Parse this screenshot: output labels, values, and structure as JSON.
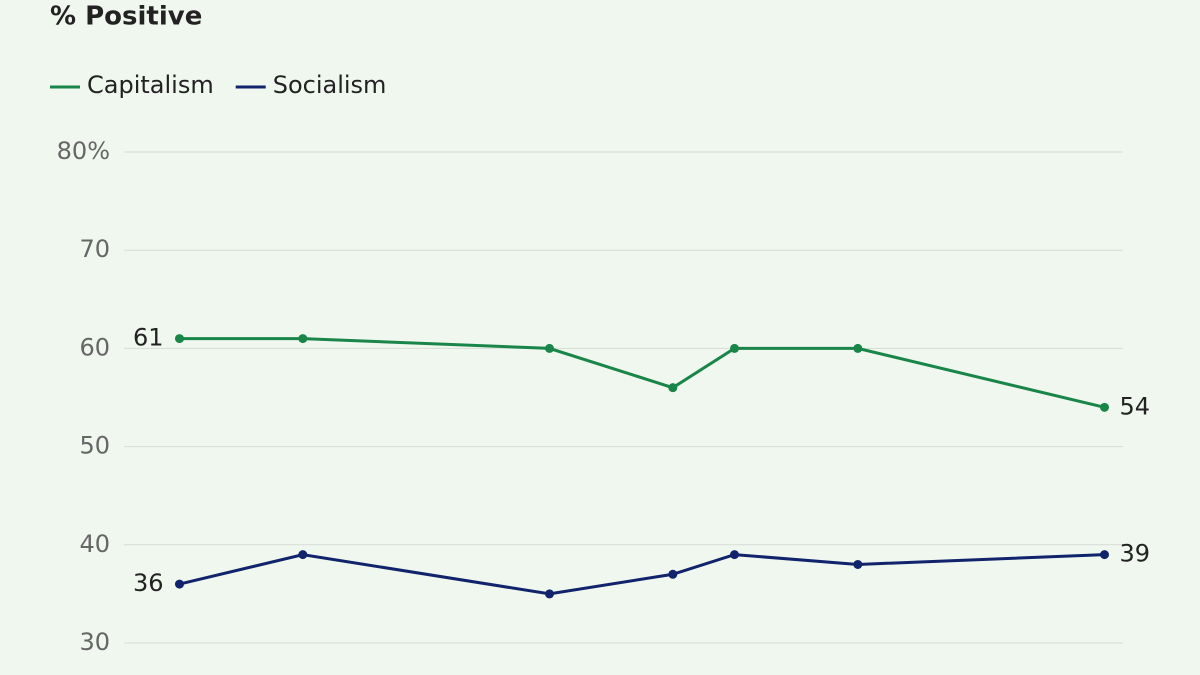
{
  "chart_data": {
    "type": "line",
    "title": "% Positive",
    "x": [
      0,
      2,
      6,
      8,
      9,
      11,
      15
    ],
    "xlim": [
      -0.9,
      15.3
    ],
    "series": [
      {
        "name": "Capitalism",
        "color": "#1a8548",
        "values": [
          61,
          61,
          60,
          56,
          60,
          60,
          54
        ]
      },
      {
        "name": "Socialism",
        "color": "#10236b",
        "values": [
          36,
          39,
          35,
          37,
          39,
          38,
          39
        ]
      }
    ],
    "ylim": [
      30,
      80
    ],
    "yticks": [
      30,
      40,
      50,
      60,
      70,
      {
        "value": 80,
        "label": "80%"
      }
    ],
    "grid": true,
    "legend": "top"
  }
}
